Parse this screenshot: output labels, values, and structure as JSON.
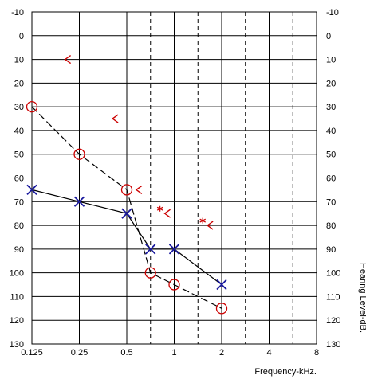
{
  "chart_data": {
    "type": "scatter",
    "title": "",
    "xlabel": "Frequency-kHz.",
    "ylabel": "Hearing Level-dB.",
    "y_inverted": true,
    "ylim": [
      -10,
      130
    ],
    "yticks": [
      "-10",
      "0",
      "10",
      "20",
      "30",
      "40",
      "50",
      "60",
      "70",
      "80",
      "90",
      "100",
      "110",
      "120",
      "130"
    ],
    "x_positions": [
      0,
      1,
      2,
      3,
      4,
      5,
      6
    ],
    "xtick_labels": [
      "0.125",
      "0.25",
      "0.5",
      "1",
      "2",
      "4",
      "8"
    ],
    "dashed_x_positions": [
      2.5,
      3.5,
      4.5,
      5.5
    ],
    "grid": true,
    "colors": {
      "red": "#cc0000",
      "blue": "#1a1a9e",
      "line": "#000000"
    },
    "series": [
      {
        "marker": "circle",
        "color": "#cc0000",
        "connected": true,
        "line_style": "dash",
        "points": [
          {
            "x": 0,
            "y": 30
          },
          {
            "x": 1,
            "y": 50
          },
          {
            "x": 2,
            "y": 65
          },
          {
            "x": 2.5,
            "y": 100
          },
          {
            "x": 3,
            "y": 105
          },
          {
            "x": 4,
            "y": 115
          }
        ]
      },
      {
        "marker": "x",
        "color": "#1a1a9e",
        "connected": true,
        "line_style": "solid",
        "points": [
          {
            "x": 0,
            "y": 65
          },
          {
            "x": 1,
            "y": 70
          },
          {
            "x": 2,
            "y": 75
          },
          {
            "x": 2.5,
            "y": 90
          },
          {
            "x": 3,
            "y": 90
          },
          {
            "x": 4,
            "y": 105
          }
        ]
      },
      {
        "marker": "bracket-left",
        "color": "#cc0000",
        "connected": false,
        "points": [
          {
            "x": 0.75,
            "y": 10
          },
          {
            "x": 1.75,
            "y": 35
          },
          {
            "x": 2.25,
            "y": 65
          },
          {
            "x": 2.85,
            "y": 75
          },
          {
            "x": 3.75,
            "y": 80
          }
        ]
      },
      {
        "marker": "asterisk",
        "color": "#cc0000",
        "connected": false,
        "points": [
          {
            "x": 2.7,
            "y": 73
          },
          {
            "x": 3.6,
            "y": 78
          }
        ]
      }
    ]
  }
}
